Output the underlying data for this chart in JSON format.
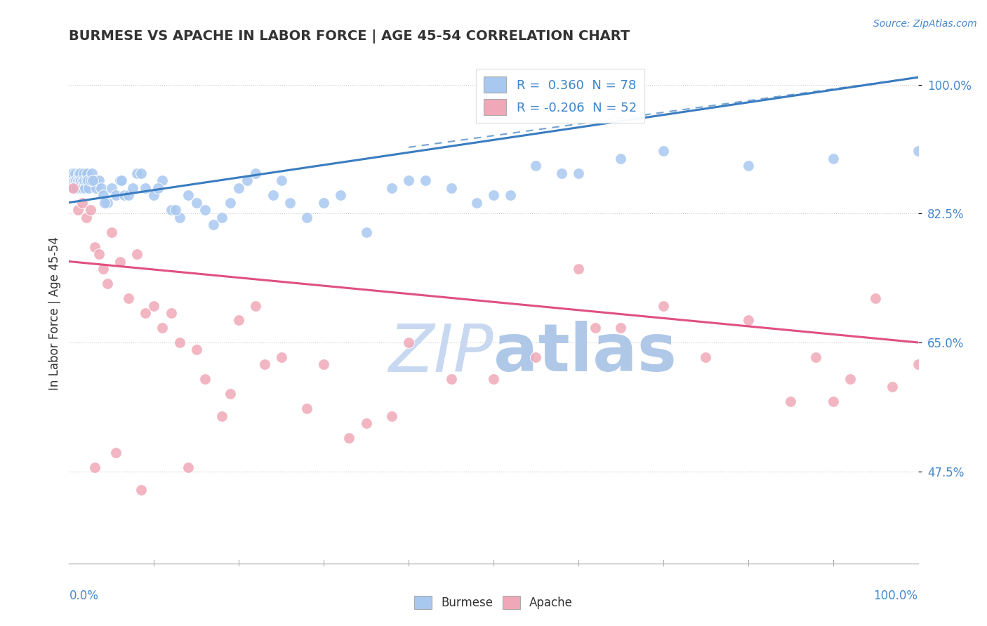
{
  "title": "BURMESE VS APACHE IN LABOR FORCE | AGE 45-54 CORRELATION CHART",
  "source_text": "Source: ZipAtlas.com",
  "ylabel": "In Labor Force | Age 45-54",
  "legend_burmese": "Burmese",
  "legend_apache": "Apache",
  "R_burmese": 0.36,
  "N_burmese": 78,
  "R_apache": -0.206,
  "N_apache": 52,
  "burmese_color": "#A8C8F0",
  "apache_color": "#F0A8B8",
  "burmese_line_color": "#3A7CC0",
  "apache_line_color": "#E05080",
  "watermark_color": "#C8D8F0",
  "xmin": 0.0,
  "xmax": 100.0,
  "ymin": 35.0,
  "ymax": 103.0,
  "ytick_vals": [
    47.5,
    65.0,
    82.5,
    100.0
  ],
  "burmese_trend_x0": 0.0,
  "burmese_trend_x1": 100.0,
  "burmese_trend_y0": 84.0,
  "burmese_trend_y1": 101.0,
  "apache_trend_x0": 0.0,
  "apache_trend_x1": 100.0,
  "apache_trend_y0": 76.0,
  "apache_trend_y1": 65.0,
  "burmese_x": [
    0.3,
    0.4,
    0.5,
    0.6,
    0.7,
    0.8,
    0.9,
    1.0,
    1.1,
    1.2,
    1.3,
    1.4,
    1.5,
    1.6,
    1.7,
    1.8,
    1.9,
    2.0,
    2.1,
    2.2,
    2.3,
    2.5,
    2.7,
    3.0,
    3.2,
    3.5,
    3.8,
    4.0,
    4.5,
    5.0,
    5.5,
    6.0,
    6.5,
    7.0,
    7.5,
    8.0,
    9.0,
    10.0,
    11.0,
    12.0,
    13.0,
    14.0,
    15.0,
    16.0,
    17.0,
    18.0,
    20.0,
    22.0,
    25.0,
    28.0,
    30.0,
    35.0,
    40.0,
    45.0,
    50.0,
    55.0,
    60.0,
    65.0,
    70.0,
    80.0,
    90.0,
    100.0,
    2.8,
    4.2,
    6.2,
    8.5,
    10.5,
    12.5,
    19.0,
    21.0,
    24.0,
    26.0,
    32.0,
    38.0,
    42.0,
    48.0,
    52.0,
    58.0
  ],
  "burmese_y": [
    87,
    88,
    86,
    87,
    88,
    87,
    86,
    87,
    88,
    87,
    88,
    87,
    86,
    87,
    88,
    87,
    86,
    87,
    88,
    87,
    86,
    87,
    88,
    87,
    86,
    87,
    86,
    85,
    84,
    86,
    85,
    87,
    85,
    85,
    86,
    88,
    86,
    85,
    87,
    83,
    82,
    85,
    84,
    83,
    81,
    82,
    86,
    88,
    87,
    82,
    84,
    80,
    87,
    86,
    85,
    89,
    88,
    90,
    91,
    89,
    90,
    91,
    87,
    84,
    87,
    88,
    86,
    83,
    84,
    87,
    85,
    84,
    85,
    86,
    87,
    84,
    85,
    88
  ],
  "apache_x": [
    0.5,
    1.0,
    1.5,
    2.0,
    2.5,
    3.0,
    3.5,
    4.0,
    4.5,
    5.0,
    6.0,
    7.0,
    8.0,
    9.0,
    10.0,
    11.0,
    12.0,
    13.0,
    15.0,
    16.0,
    18.0,
    20.0,
    22.0,
    25.0,
    28.0,
    30.0,
    33.0,
    35.0,
    38.0,
    40.0,
    45.0,
    50.0,
    55.0,
    60.0,
    65.0,
    70.0,
    75.0,
    80.0,
    85.0,
    90.0,
    92.0,
    95.0,
    97.0,
    100.0,
    3.0,
    5.5,
    8.5,
    14.0,
    19.0,
    23.0,
    62.0,
    88.0
  ],
  "apache_y": [
    86,
    83,
    84,
    82,
    83,
    78,
    77,
    75,
    73,
    80,
    76,
    71,
    77,
    69,
    70,
    67,
    69,
    65,
    64,
    60,
    55,
    68,
    70,
    63,
    56,
    62,
    52,
    54,
    55,
    65,
    60,
    60,
    63,
    75,
    67,
    70,
    63,
    68,
    57,
    57,
    60,
    71,
    59,
    62,
    48,
    50,
    45,
    48,
    58,
    62,
    67,
    63
  ]
}
